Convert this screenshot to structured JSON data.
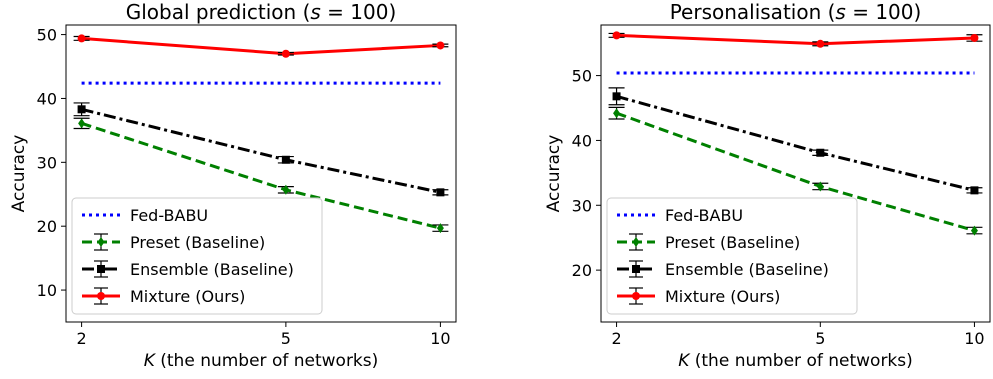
{
  "chart_data": [
    {
      "type": "line",
      "title": "Global prediction (s = 100)",
      "title_prefix": "Global prediction (",
      "title_var": "s",
      "title_suffix": " = 100)",
      "xlabel_var": "K",
      "xlabel_rest": " (the number of networks)",
      "ylabel": "Accuracy",
      "x": [
        2,
        5,
        10
      ],
      "x_ticks": [
        "2",
        "5",
        "10"
      ],
      "x_scale": "log",
      "ylim": [
        5,
        51.5
      ],
      "y_ticks": [
        10,
        20,
        30,
        40,
        50
      ],
      "grid": false,
      "legend_position": "lower-left",
      "series": [
        {
          "name": "Fed-BABU",
          "color": "#0000ff",
          "style": "dotted",
          "marker": "none",
          "values": [
            42.4,
            42.4,
            42.4
          ]
        },
        {
          "name": "Preset (Baseline)",
          "color": "#008000",
          "style": "dashed",
          "marker": "diamond",
          "values": [
            36.1,
            25.7,
            19.7
          ],
          "errors": [
            0.8,
            0.5,
            0.5
          ]
        },
        {
          "name": "Ensemble (Baseline)",
          "color": "#000000",
          "style": "dashdot",
          "marker": "square",
          "values": [
            38.3,
            30.4,
            25.3
          ],
          "errors": [
            1.0,
            0.5,
            0.4
          ]
        },
        {
          "name": "Mixture (Ours)",
          "color": "#ff0000",
          "style": "solid",
          "marker": "circle",
          "values": [
            49.4,
            47.0,
            48.3
          ],
          "errors": [
            0.3,
            0.2,
            0.2
          ]
        }
      ]
    },
    {
      "type": "line",
      "title": "Personalisation (s = 100)",
      "title_prefix": "Personalisation (",
      "title_var": "s",
      "title_suffix": " = 100)",
      "xlabel_var": "K",
      "xlabel_rest": " (the number of networks)",
      "ylabel": "Accuracy",
      "x": [
        2,
        5,
        10
      ],
      "x_ticks": [
        "2",
        "5",
        "10"
      ],
      "x_scale": "log",
      "ylim": [
        12,
        57.8
      ],
      "y_ticks": [
        20,
        30,
        40,
        50
      ],
      "grid": false,
      "legend_position": "lower-left",
      "series": [
        {
          "name": "Fed-BABU",
          "color": "#0000ff",
          "style": "dotted",
          "marker": "none",
          "values": [
            50.4,
            50.4,
            50.4
          ]
        },
        {
          "name": "Preset (Baseline)",
          "color": "#008000",
          "style": "dashed",
          "marker": "diamond",
          "values": [
            44.2,
            32.9,
            26.1
          ],
          "errors": [
            0.9,
            0.5,
            0.5
          ]
        },
        {
          "name": "Ensemble (Baseline)",
          "color": "#000000",
          "style": "dashdot",
          "marker": "square",
          "values": [
            46.8,
            38.1,
            32.3
          ],
          "errors": [
            1.3,
            0.4,
            0.4
          ]
        },
        {
          "name": "Mixture (Ours)",
          "color": "#ff0000",
          "style": "solid",
          "marker": "circle",
          "values": [
            56.2,
            54.9,
            55.8
          ],
          "errors": [
            0.3,
            0.3,
            0.5
          ]
        }
      ]
    }
  ]
}
